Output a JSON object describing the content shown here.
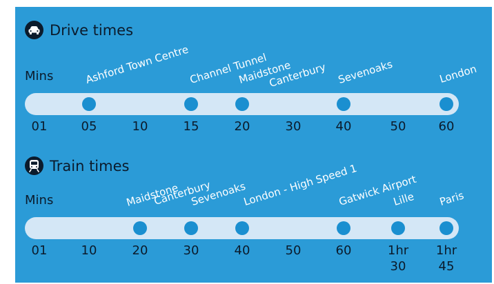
{
  "colors": {
    "panel": "#2b9bd7",
    "track": "#d4e7f6",
    "dot": "#1a8fd0",
    "ink": "#0b1b2c",
    "label": "#ffffff"
  },
  "drive": {
    "title": "Drive times",
    "icon": "car-icon",
    "mins_label": "Mins",
    "ticks": [
      "01",
      "05",
      "10",
      "15",
      "20",
      "30",
      "40",
      "50",
      "60"
    ],
    "stops": [
      {
        "name": "Ashford Town Centre",
        "time": "05"
      },
      {
        "name": "Channel Tunnel",
        "time": "15"
      },
      {
        "name": "Maidstone",
        "time": "20"
      },
      {
        "name": "Canterbury",
        "time": "20"
      },
      {
        "name": "Sevenoaks",
        "time": "40"
      },
      {
        "name": "London",
        "time": "60"
      }
    ]
  },
  "train": {
    "title": "Train times",
    "icon": "train-icon",
    "mins_label": "Mins",
    "ticks": [
      "01",
      "10",
      "20",
      "30",
      "40",
      "50",
      "60",
      "1hr\n30",
      "1hr\n45"
    ],
    "stops": [
      {
        "name": "Maidstone",
        "time": "20"
      },
      {
        "name": "Canterbury",
        "time": "30"
      },
      {
        "name": "Sevenoaks",
        "time": "30"
      },
      {
        "name": "London - High Speed 1",
        "time": "40"
      },
      {
        "name": "Gatwick Airport",
        "time": "60"
      },
      {
        "name": "Lille",
        "time": "1hr 30"
      },
      {
        "name": "Paris",
        "time": "1hr 45"
      }
    ]
  }
}
